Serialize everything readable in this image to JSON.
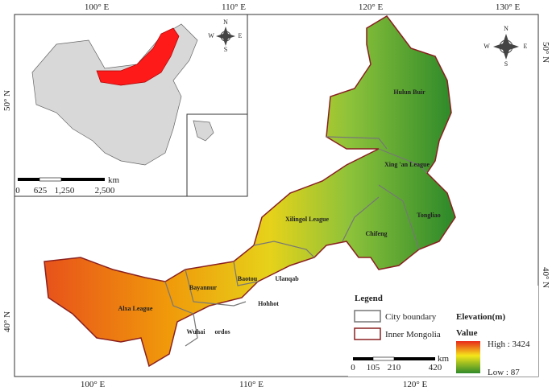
{
  "graticule": {
    "top": [
      "100° E",
      "110° E",
      "120° E",
      "130° E"
    ],
    "bottom": [
      "100° E",
      "110° E",
      "120° E"
    ],
    "left": [
      "50° N",
      "40° N"
    ],
    "right": [
      "50° N",
      "40° N"
    ]
  },
  "cities": [
    "Hulun Buir",
    "Xing 'an League",
    "Xilingol League",
    "Tongliao",
    "Chifeng",
    "Baotou",
    "Ulanqab",
    "Bayannur",
    "Hohhot",
    "Alxa League",
    "Wuhai",
    "ordos"
  ],
  "compass": [
    "N",
    "W",
    "E",
    "S"
  ],
  "inset_scale": {
    "ticks": [
      "0",
      "625",
      "1,250",
      "2,500"
    ],
    "unit": "km"
  },
  "main_scale": {
    "ticks": [
      "0",
      "105",
      "210",
      "420"
    ],
    "unit": "km"
  },
  "legend": {
    "title": "Legend",
    "items": [
      "City boundary",
      "Inner Mongolia"
    ],
    "elevation": {
      "title": "Elevation(m)",
      "value_label": "Value",
      "high": "High : 3424",
      "low": "Low : 87"
    }
  }
}
